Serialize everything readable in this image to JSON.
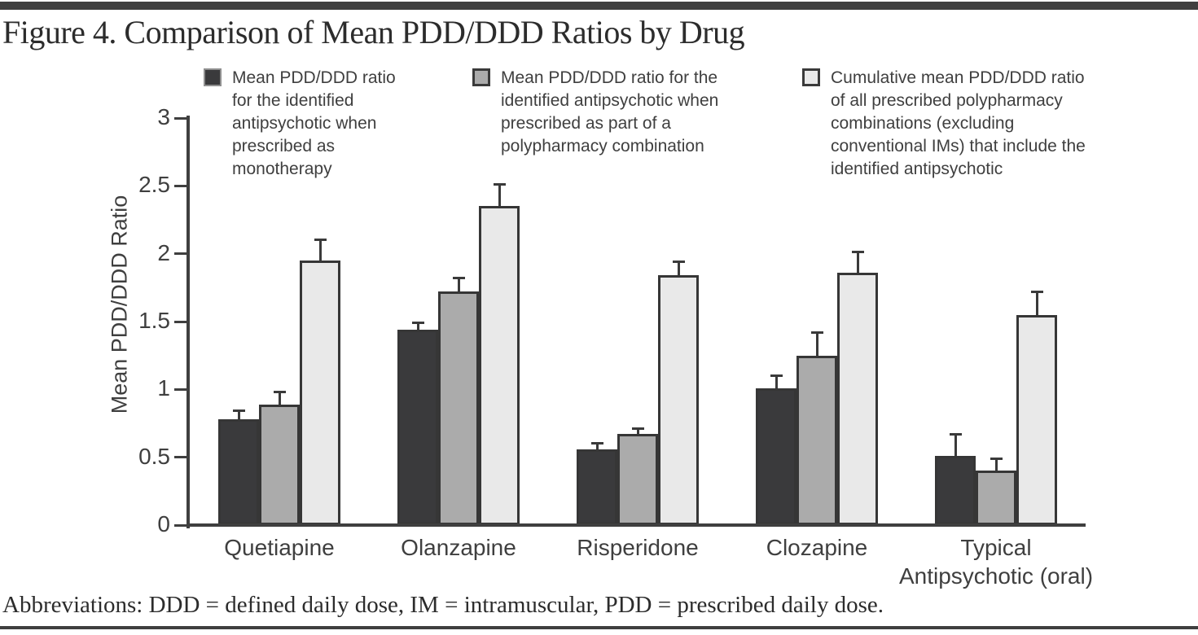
{
  "page": {
    "title": "Figure 4. Comparison of Mean PDD/DDD Ratios by Drug",
    "footnote": "Abbreviations: DDD = defined daily dose, IM = intramuscular, PDD = prescribed daily dose."
  },
  "legend": [
    {
      "label": "Mean PDD/DDD ratio for the identified antipsychotic when prescribed as monotherapy",
      "color": "#3a3a3c"
    },
    {
      "label": "Mean PDD/DDD ratio for the identified antipsychotic when prescribed as part of a polypharmacy combination",
      "color": "#ababab"
    },
    {
      "label": "Cumulative mean PDD/DDD ratio of all prescribed polypharmacy combinations (excluding conventional IMs) that include the identified antipsychotic",
      "color": "#e9e9e9"
    }
  ],
  "chart_data": {
    "type": "bar",
    "title": "Figure 4. Comparison of Mean PDD/DDD Ratios by Drug",
    "xlabel": "",
    "ylabel": "Mean PDD/DDD Ratio",
    "ylim": [
      0,
      3
    ],
    "yticks": [
      0,
      0.5,
      1,
      1.5,
      2,
      2.5,
      3
    ],
    "grid": false,
    "legend_position": "top",
    "error_bars": "upper-only",
    "categories": [
      "Quetiapine",
      "Olanzapine",
      "Risperidone",
      "Clozapine",
      "Typical\nAntipsychotic (oral)"
    ],
    "series": [
      {
        "name": "Mean PDD/DDD ratio for the identified antipsychotic when prescribed as monotherapy",
        "color": "#3a3a3c",
        "values": [
          0.78,
          1.44,
          0.56,
          1.01,
          0.51
        ],
        "error_upper": [
          0.85,
          1.5,
          0.61,
          1.11,
          0.68
        ]
      },
      {
        "name": "Mean PDD/DDD ratio for the identified antipsychotic when prescribed as part of a polypharmacy combination",
        "color": "#ababab",
        "values": [
          0.89,
          1.72,
          0.67,
          1.25,
          0.4
        ],
        "error_upper": [
          0.99,
          1.83,
          0.72,
          1.43,
          0.5
        ]
      },
      {
        "name": "Cumulative mean PDD/DDD ratio of all prescribed polypharmacy combinations (excluding conventional IMs) that include the identified antipsychotic",
        "color": "#e9e9e9",
        "values": [
          1.95,
          2.35,
          1.84,
          1.86,
          1.55
        ],
        "error_upper": [
          2.11,
          2.52,
          1.95,
          2.02,
          1.73
        ]
      }
    ]
  }
}
